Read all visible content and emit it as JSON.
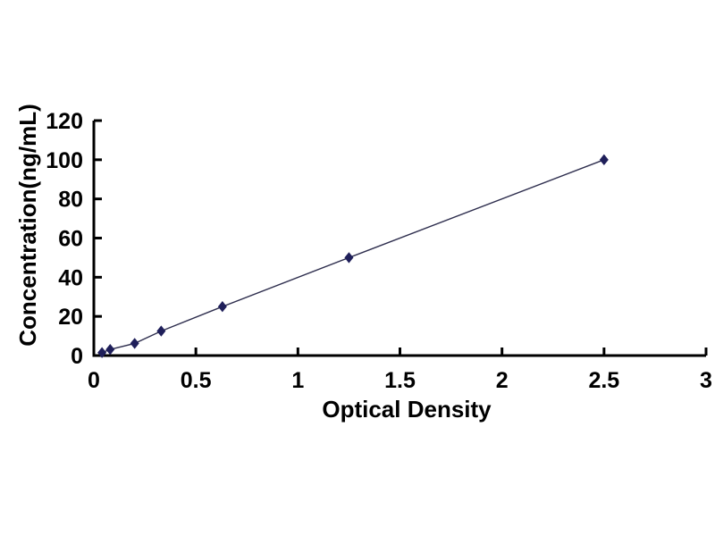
{
  "page": {
    "background": "#ffffff",
    "description": "ELISA standard curve scatter plot"
  },
  "chart_data": {
    "type": "scatter",
    "title": "",
    "xlabel": "Optical Density",
    "ylabel": "Concentration(ng/mL)",
    "xlim": [
      0,
      3
    ],
    "ylim": [
      0,
      120
    ],
    "x_ticks": [
      0,
      0.5,
      1,
      1.5,
      2,
      2.5,
      3
    ],
    "x_tick_labels": [
      "0",
      "0.5",
      "1",
      "1.5",
      "2",
      "2.5",
      "3"
    ],
    "y_ticks": [
      0,
      20,
      40,
      60,
      80,
      100,
      120
    ],
    "y_tick_labels": [
      "0",
      "20",
      "40",
      "60",
      "80",
      "100",
      "120"
    ],
    "grid": false,
    "legend": null,
    "marker": "diamond",
    "line_through_points": true,
    "colors": {
      "axis": "#000000",
      "tick_label": "#000000",
      "marker": "#1f1f5a",
      "line": "#2e2e4e"
    },
    "points": [
      {
        "x": 0.04,
        "y": 1.5
      },
      {
        "x": 0.08,
        "y": 3.1
      },
      {
        "x": 0.2,
        "y": 6.2
      },
      {
        "x": 0.33,
        "y": 12.5
      },
      {
        "x": 0.63,
        "y": 25
      },
      {
        "x": 1.25,
        "y": 50
      },
      {
        "x": 2.5,
        "y": 100
      }
    ]
  }
}
